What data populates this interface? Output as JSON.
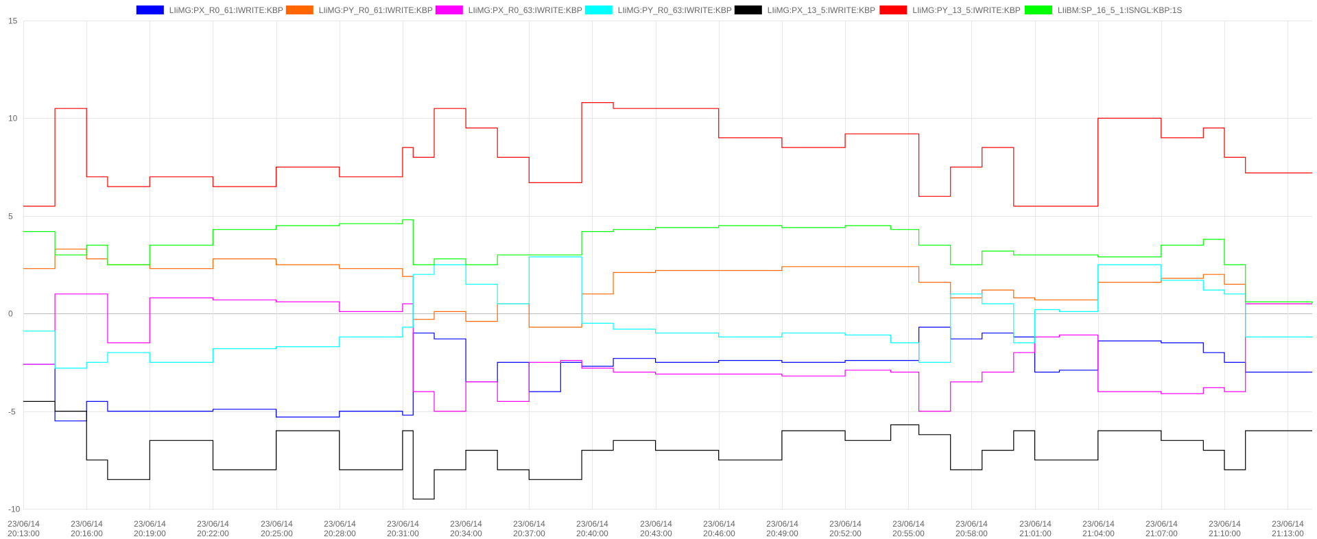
{
  "chart_data": {
    "type": "line",
    "step": true,
    "grid": true,
    "legend_position": "top-center",
    "x_unit": "minutes",
    "x_tick_labels": [
      [
        "23/06/14",
        "20:13:00"
      ],
      [
        "23/06/14",
        "20:16:00"
      ],
      [
        "23/06/14",
        "20:19:00"
      ],
      [
        "23/06/14",
        "20:22:00"
      ],
      [
        "23/06/14",
        "20:25:00"
      ],
      [
        "23/06/14",
        "20:28:00"
      ],
      [
        "23/06/14",
        "20:31:00"
      ],
      [
        "23/06/14",
        "20:34:00"
      ],
      [
        "23/06/14",
        "20:37:00"
      ],
      [
        "23/06/14",
        "20:40:00"
      ],
      [
        "23/06/14",
        "20:43:00"
      ],
      [
        "23/06/14",
        "20:46:00"
      ],
      [
        "23/06/14",
        "20:49:00"
      ],
      [
        "23/06/14",
        "20:52:00"
      ],
      [
        "23/06/14",
        "20:55:00"
      ],
      [
        "23/06/14",
        "20:58:00"
      ],
      [
        "23/06/14",
        "21:01:00"
      ],
      [
        "23/06/14",
        "21:04:00"
      ],
      [
        "23/06/14",
        "21:07:00"
      ],
      [
        "23/06/14",
        "21:10:00"
      ],
      [
        "23/06/14",
        "21:13:00"
      ]
    ],
    "xlim": [
      "23/06/14 20:13:00",
      "23/06/14 21:14:10"
    ],
    "ylim": [
      -10,
      15
    ],
    "y_ticks": [
      -10,
      -5,
      0,
      5,
      10,
      15
    ],
    "series": [
      {
        "name": "LIiMG:PX_R0_61:IWRITE:KBP",
        "color": "#0000ff",
        "x": [
          "20:13:00",
          "20:14:00",
          "20:14:30",
          "20:16:00",
          "20:17:00",
          "20:19:00",
          "20:22:00",
          "20:25:00",
          "20:28:00",
          "20:31:00",
          "20:31:30",
          "20:32:30",
          "20:34:00",
          "20:35:30",
          "20:37:00",
          "20:38:30",
          "20:39:30",
          "20:41:00",
          "20:43:00",
          "20:46:00",
          "20:49:00",
          "20:52:00",
          "20:54:10",
          "20:55:30",
          "20:57:00",
          "20:58:30",
          "21:00:00",
          "21:01:00",
          "21:02:10",
          "21:04:00",
          "21:07:00",
          "21:09:00",
          "21:10:00",
          "21:11:00",
          "21:14:10"
        ],
        "y": [
          -2.6,
          -2.6,
          -5.5,
          -4.5,
          -5.0,
          -5.0,
          -4.9,
          -5.3,
          -5.0,
          -5.2,
          -1.0,
          -1.3,
          -3.5,
          -2.5,
          -4.0,
          -2.5,
          -2.7,
          -2.3,
          -2.5,
          -2.4,
          -2.5,
          -2.4,
          -2.4,
          -0.7,
          -1.3,
          -1.0,
          -1.2,
          -3.0,
          -2.9,
          -1.4,
          -1.5,
          -2.0,
          -2.5,
          -3.0,
          -3.0
        ]
      },
      {
        "name": "LIiMG:PY_R0_61:IWRITE:KBP",
        "color": "#ff6600",
        "x": [
          "20:13:00",
          "20:14:00",
          "20:14:30",
          "20:16:00",
          "20:17:00",
          "20:19:00",
          "20:22:00",
          "20:25:00",
          "20:28:00",
          "20:31:00",
          "20:31:30",
          "20:32:30",
          "20:34:00",
          "20:35:30",
          "20:37:00",
          "20:38:30",
          "20:39:30",
          "20:41:00",
          "20:43:00",
          "20:46:00",
          "20:49:00",
          "20:52:00",
          "20:54:10",
          "20:55:30",
          "20:57:00",
          "20:58:30",
          "21:00:00",
          "21:01:00",
          "21:02:10",
          "21:04:00",
          "21:07:00",
          "21:09:00",
          "21:10:00",
          "21:11:00",
          "21:14:10"
        ],
        "y": [
          2.3,
          2.3,
          3.3,
          2.8,
          2.5,
          2.3,
          2.8,
          2.5,
          2.3,
          1.9,
          -0.3,
          0.1,
          -0.4,
          0.5,
          -0.7,
          -0.7,
          1.0,
          2.1,
          2.2,
          2.2,
          2.4,
          2.4,
          2.4,
          1.6,
          0.8,
          1.2,
          0.8,
          0.7,
          0.7,
          1.6,
          1.8,
          2.0,
          1.5,
          0.5,
          0.5
        ]
      },
      {
        "name": "LIiMG:PX_R0_63:IWRITE:KBP",
        "color": "#ff00ff",
        "x": [
          "20:13:00",
          "20:14:00",
          "20:14:30",
          "20:16:00",
          "20:17:00",
          "20:19:00",
          "20:22:00",
          "20:25:00",
          "20:28:00",
          "20:31:00",
          "20:31:30",
          "20:32:30",
          "20:34:00",
          "20:35:30",
          "20:37:00",
          "20:38:30",
          "20:39:30",
          "20:41:00",
          "20:43:00",
          "20:46:00",
          "20:49:00",
          "20:52:00",
          "20:54:10",
          "20:55:30",
          "20:57:00",
          "20:58:30",
          "21:00:00",
          "21:01:00",
          "21:02:10",
          "21:04:00",
          "21:07:00",
          "21:09:00",
          "21:10:00",
          "21:11:00",
          "21:14:10"
        ],
        "y": [
          -2.6,
          -2.6,
          1.0,
          1.0,
          -1.5,
          0.8,
          0.7,
          0.6,
          0.1,
          0.5,
          -4.0,
          -5.0,
          -3.5,
          -4.5,
          -2.5,
          -2.4,
          -2.8,
          -3.0,
          -3.1,
          -3.1,
          -3.2,
          -2.9,
          -3.0,
          -5.0,
          -3.5,
          -3.0,
          -2.0,
          -1.2,
          -1.1,
          -4.0,
          -4.1,
          -3.8,
          -4.0,
          0.5,
          0.5
        ]
      },
      {
        "name": "LIiMG:PY_R0_63:IWRITE:KBP",
        "color": "#00ffff",
        "x": [
          "20:13:00",
          "20:14:00",
          "20:14:30",
          "20:16:00",
          "20:17:00",
          "20:19:00",
          "20:22:00",
          "20:25:00",
          "20:28:00",
          "20:31:00",
          "20:31:30",
          "20:32:30",
          "20:34:00",
          "20:35:30",
          "20:37:00",
          "20:38:30",
          "20:39:30",
          "20:41:00",
          "20:43:00",
          "20:46:00",
          "20:49:00",
          "20:52:00",
          "20:54:10",
          "20:55:30",
          "20:57:00",
          "20:58:30",
          "21:00:00",
          "21:01:00",
          "21:02:10",
          "21:04:00",
          "21:07:00",
          "21:09:00",
          "21:10:00",
          "21:11:00",
          "21:14:10"
        ],
        "y": [
          -0.9,
          -0.9,
          -2.8,
          -2.5,
          -2.0,
          -2.5,
          -1.8,
          -1.7,
          -1.2,
          -0.7,
          2.0,
          2.5,
          1.5,
          0.5,
          2.9,
          2.9,
          -0.5,
          -0.8,
          -1.0,
          -1.2,
          -1.0,
          -1.1,
          -1.5,
          -2.5,
          1.0,
          0.5,
          -1.5,
          0.2,
          0.1,
          2.5,
          1.7,
          1.2,
          1.0,
          -1.2,
          -1.2
        ]
      },
      {
        "name": "LIiMG:PX_13_5:IWRITE:KBP",
        "color": "#000000",
        "x": [
          "20:13:00",
          "20:14:00",
          "20:14:30",
          "20:16:00",
          "20:17:00",
          "20:19:00",
          "20:22:00",
          "20:25:00",
          "20:28:00",
          "20:31:00",
          "20:31:30",
          "20:32:30",
          "20:34:00",
          "20:35:30",
          "20:37:00",
          "20:38:30",
          "20:39:30",
          "20:41:00",
          "20:43:00",
          "20:46:00",
          "20:49:00",
          "20:52:00",
          "20:54:10",
          "20:55:30",
          "20:57:00",
          "20:58:30",
          "21:00:00",
          "21:01:00",
          "21:02:10",
          "21:04:00",
          "21:07:00",
          "21:09:00",
          "21:10:00",
          "21:11:00",
          "21:14:10"
        ],
        "y": [
          -4.5,
          -4.5,
          -5.0,
          -7.5,
          -8.5,
          -6.5,
          -8.0,
          -6.0,
          -8.0,
          -6.0,
          -9.5,
          -8.0,
          -7.0,
          -8.0,
          -8.5,
          -8.5,
          -7.0,
          -6.5,
          -7.0,
          -7.5,
          -6.0,
          -6.5,
          -5.7,
          -6.2,
          -8.0,
          -7.0,
          -6.0,
          -7.5,
          -7.5,
          -6.0,
          -6.5,
          -7.0,
          -8.0,
          -6.0,
          -6.0
        ]
      },
      {
        "name": "LIiMG:PY_13_5:IWRITE:KBP",
        "color": "#ff0000",
        "x": [
          "20:13:00",
          "20:14:00",
          "20:14:30",
          "20:16:00",
          "20:17:00",
          "20:19:00",
          "20:22:00",
          "20:25:00",
          "20:28:00",
          "20:31:00",
          "20:31:30",
          "20:32:30",
          "20:34:00",
          "20:35:30",
          "20:37:00",
          "20:38:30",
          "20:39:30",
          "20:41:00",
          "20:43:00",
          "20:46:00",
          "20:49:00",
          "20:52:00",
          "20:54:10",
          "20:55:30",
          "20:57:00",
          "20:58:30",
          "21:00:00",
          "21:01:00",
          "21:02:10",
          "21:04:00",
          "21:07:00",
          "21:09:00",
          "21:10:00",
          "21:11:00",
          "21:14:10"
        ],
        "y": [
          5.5,
          5.5,
          10.5,
          7.0,
          6.5,
          7.0,
          6.5,
          7.5,
          7.0,
          8.5,
          8.0,
          10.5,
          9.5,
          8.0,
          6.7,
          6.7,
          10.8,
          10.5,
          10.5,
          9.0,
          8.5,
          9.2,
          9.2,
          6.0,
          7.5,
          8.5,
          5.5,
          5.5,
          5.5,
          10.0,
          9.0,
          9.5,
          8.0,
          7.2,
          7.2
        ]
      },
      {
        "name": "LIiBM:SP_16_5_1:ISNGL:KBP:1S",
        "color": "#00ff00",
        "x": [
          "20:13:00",
          "20:14:00",
          "20:14:30",
          "20:16:00",
          "20:17:00",
          "20:19:00",
          "20:22:00",
          "20:25:00",
          "20:28:00",
          "20:31:00",
          "20:31:30",
          "20:32:30",
          "20:34:00",
          "20:35:30",
          "20:37:00",
          "20:38:30",
          "20:39:30",
          "20:41:00",
          "20:43:00",
          "20:46:00",
          "20:49:00",
          "20:52:00",
          "20:54:10",
          "20:55:30",
          "20:57:00",
          "20:58:30",
          "21:00:00",
          "21:01:00",
          "21:02:10",
          "21:04:00",
          "21:07:00",
          "21:09:00",
          "21:10:00",
          "21:11:00",
          "21:14:10"
        ],
        "y": [
          4.2,
          4.2,
          3.0,
          3.5,
          2.5,
          3.5,
          4.3,
          4.5,
          4.6,
          4.8,
          2.5,
          2.8,
          2.5,
          3.0,
          3.0,
          3.0,
          4.2,
          4.3,
          4.4,
          4.5,
          4.4,
          4.5,
          4.3,
          3.5,
          2.5,
          3.2,
          3.0,
          3.0,
          3.0,
          2.9,
          3.5,
          3.8,
          2.5,
          0.6,
          0.5
        ]
      }
    ]
  }
}
